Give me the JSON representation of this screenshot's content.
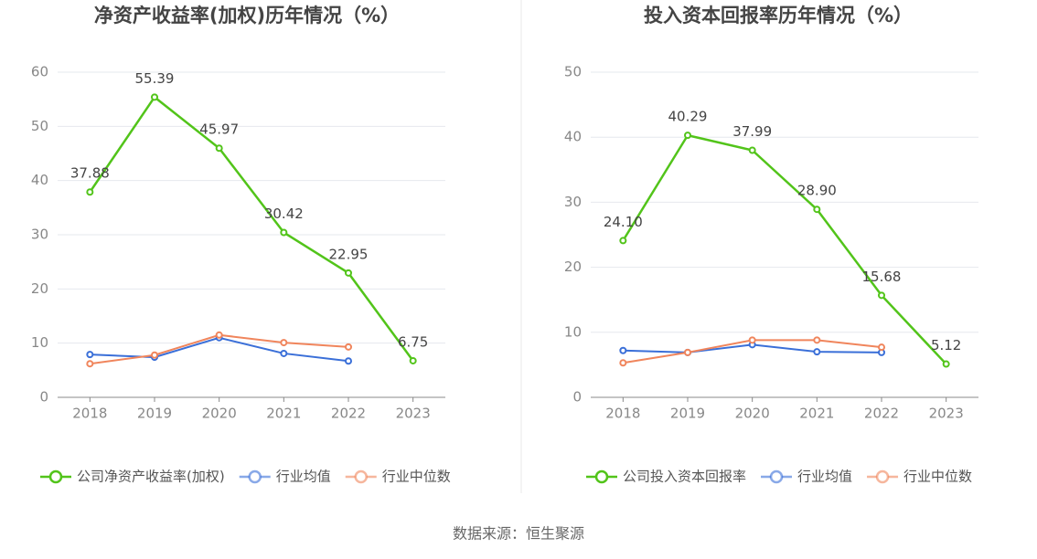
{
  "chart_data": [
    {
      "type": "line",
      "title": "净资产收益率(加权)历年情况（%）",
      "categories": [
        "2018",
        "2019",
        "2020",
        "2021",
        "2022",
        "2023"
      ],
      "series": [
        {
          "name": "公司净资产收益率(加权)",
          "color": "#52c41a",
          "values": [
            37.88,
            55.39,
            45.97,
            30.42,
            22.95,
            6.75
          ],
          "value_labels": [
            "37.88",
            "55.39",
            "45.97",
            "30.42",
            "22.95",
            "6.75"
          ]
        },
        {
          "name": "行业均值",
          "color": "#3a6fd8",
          "values": [
            7.9,
            7.4,
            11.0,
            8.1,
            6.7,
            null
          ]
        },
        {
          "name": "行业中位数",
          "color": "#f0855c",
          "values": [
            6.2,
            7.8,
            11.5,
            10.1,
            9.3,
            null
          ]
        }
      ],
      "ylim": [
        0,
        60
      ],
      "yticks": [
        0,
        10,
        20,
        30,
        40,
        50,
        60
      ],
      "grid": true,
      "legend": "bottom"
    },
    {
      "type": "line",
      "title": "投入资本回报率历年情况（%）",
      "categories": [
        "2018",
        "2019",
        "2020",
        "2021",
        "2022",
        "2023"
      ],
      "series": [
        {
          "name": "公司投入资本回报率",
          "color": "#52c41a",
          "values": [
            24.1,
            40.29,
            37.99,
            28.9,
            15.68,
            5.12
          ],
          "value_labels": [
            "24.10",
            "40.29",
            "37.99",
            "28.90",
            "15.68",
            "5.12"
          ]
        },
        {
          "name": "行业均值",
          "color": "#3a6fd8",
          "values": [
            7.2,
            6.9,
            8.1,
            7.0,
            6.9,
            null
          ]
        },
        {
          "name": "行业中位数",
          "color": "#f0855c",
          "values": [
            5.3,
            6.9,
            8.8,
            8.8,
            7.7,
            null
          ]
        }
      ],
      "ylim": [
        0,
        50
      ],
      "yticks": [
        0,
        10,
        20,
        30,
        40,
        50
      ],
      "grid": true,
      "legend": "bottom"
    }
  ],
  "source": "数据来源：恒生聚源"
}
